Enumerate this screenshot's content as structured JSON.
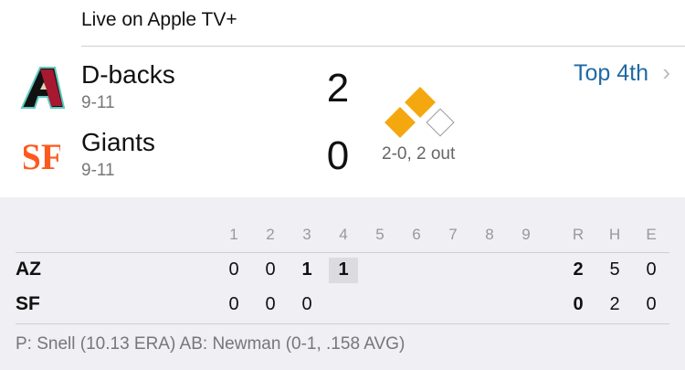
{
  "header": {
    "live": "Live on Apple TV+"
  },
  "teams": [
    {
      "name": "D-backs",
      "record": "9-11",
      "score": "2",
      "abbr": "AZ",
      "innings": [
        "0",
        "0",
        "1",
        "1",
        "",
        "",
        "",
        "",
        ""
      ],
      "r": "2",
      "h": "5",
      "e": "0"
    },
    {
      "name": "Giants",
      "record": "9-11",
      "score": "0",
      "abbr": "SF",
      "innings": [
        "0",
        "0",
        "0",
        "",
        "",
        "",
        "",
        "",
        ""
      ],
      "r": "0",
      "h": "2",
      "e": "0"
    }
  ],
  "status": {
    "inning": "Top 4th",
    "count": "2-0, 2 out",
    "bases": {
      "first": false,
      "second": true,
      "third": true
    }
  },
  "linescore": {
    "headers": [
      "1",
      "2",
      "3",
      "4",
      "5",
      "6",
      "7",
      "8",
      "9"
    ],
    "rhe": [
      "R",
      "H",
      "E"
    ]
  },
  "footer": "P: Snell (10.13 ERA)  AB: Newman (0-1, .158 AVG)",
  "colors": {
    "accent": "#1f6aa5",
    "base_on": "#f5a70f"
  }
}
